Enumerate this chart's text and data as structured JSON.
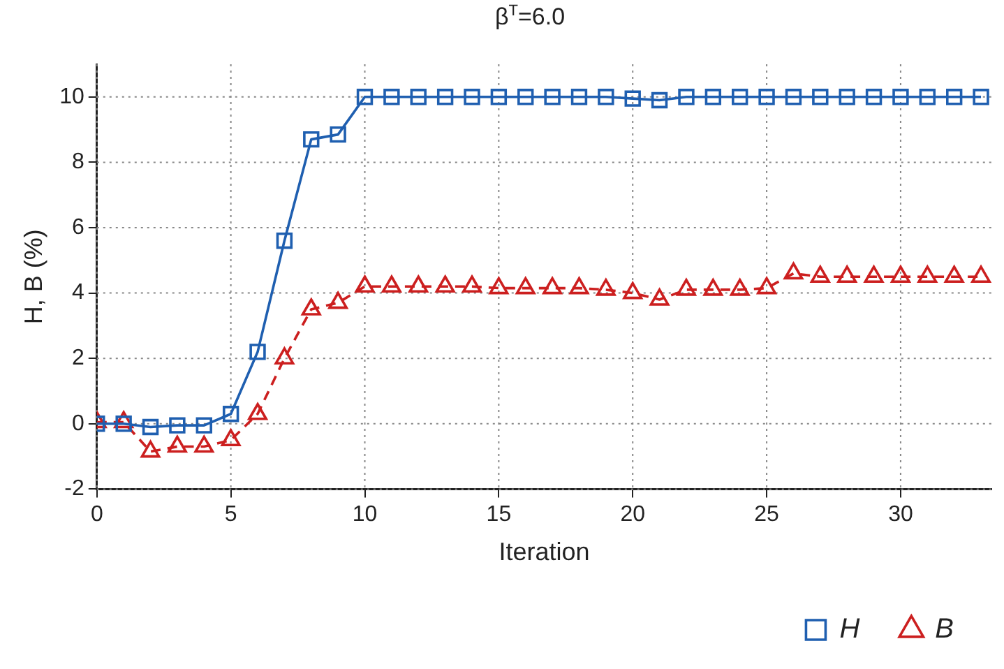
{
  "chart_data": {
    "type": "line",
    "title": "β$^{T}$=6.0",
    "xlabel": "Iteration",
    "ylabel": "H, B (%)",
    "x": [
      0,
      1,
      2,
      3,
      4,
      5,
      6,
      7,
      8,
      9,
      10,
      11,
      12,
      13,
      14,
      15,
      16,
      17,
      18,
      19,
      20,
      21,
      22,
      23,
      24,
      25,
      26,
      27,
      28,
      29,
      30,
      31,
      32,
      33
    ],
    "series": [
      {
        "name": "H",
        "color": "#1f5fb0",
        "marker": "square",
        "line_style": "solid",
        "values": [
          0,
          0,
          -0.1,
          -0.05,
          -0.05,
          0.3,
          2.2,
          5.6,
          8.7,
          8.85,
          10,
          10,
          10,
          10,
          10,
          10,
          10,
          10,
          10,
          10,
          9.95,
          9.9,
          10,
          10,
          10,
          10,
          10,
          10,
          10,
          10,
          10,
          10,
          10,
          10
        ]
      },
      {
        "name": "B",
        "color": "#cc1f1f",
        "marker": "triangle",
        "line_style": "dashed",
        "values": [
          0.05,
          0.05,
          -0.85,
          -0.7,
          -0.7,
          -0.5,
          0.3,
          2.0,
          3.5,
          3.7,
          4.2,
          4.2,
          4.2,
          4.2,
          4.2,
          4.15,
          4.15,
          4.15,
          4.15,
          4.1,
          4.0,
          3.8,
          4.1,
          4.1,
          4.1,
          4.15,
          4.6,
          4.5,
          4.5,
          4.5,
          4.5,
          4.5,
          4.5,
          4.5
        ]
      }
    ],
    "xlim": [
      0,
      33.4
    ],
    "xticks": [
      0,
      5,
      10,
      15,
      20,
      25,
      30
    ],
    "ylim": [
      -2,
      11
    ],
    "yticks": [
      -2,
      0,
      2,
      4,
      6,
      8,
      10
    ],
    "grid": true,
    "legend": "bottom right"
  }
}
